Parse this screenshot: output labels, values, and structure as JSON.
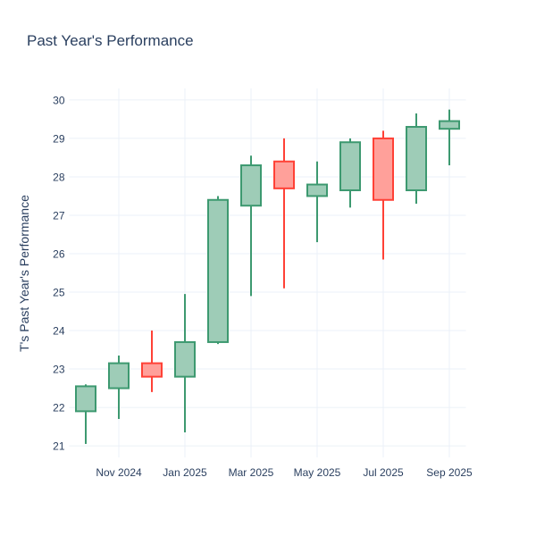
{
  "chart_data": {
    "type": "candlestick",
    "title": "Past Year's Performance",
    "xlabel": "",
    "ylabel": "T's Past Year's Performance",
    "ylim": [
      20.7,
      30.3
    ],
    "y_ticks": [
      21,
      22,
      23,
      24,
      25,
      26,
      27,
      28,
      29,
      30
    ],
    "x_ticks": [
      {
        "index": 1,
        "label": "Nov 2024"
      },
      {
        "index": 3,
        "label": "Jan 2025"
      },
      {
        "index": 5,
        "label": "Mar 2025"
      },
      {
        "index": 7,
        "label": "May 2025"
      },
      {
        "index": 9,
        "label": "Jul 2025"
      },
      {
        "index": 11,
        "label": "Sep 2025"
      }
    ],
    "grid": true,
    "legend": "none",
    "colors": {
      "increasing_line": "#3D9970",
      "increasing_fill": "#9ECCB7",
      "decreasing_line": "#FF4136",
      "decreasing_fill": "#FFA09A",
      "grid": "#EBF0F8",
      "text": "#2a3f5f",
      "background": "#FFFFFF"
    },
    "ohlc": [
      {
        "month": "Oct 2024",
        "open": 21.9,
        "high": 22.6,
        "low": 21.05,
        "close": 22.55
      },
      {
        "month": "Nov 2024",
        "open": 22.5,
        "high": 23.35,
        "low": 21.7,
        "close": 23.15
      },
      {
        "month": "Dec 2024",
        "open": 23.15,
        "high": 24.0,
        "low": 22.4,
        "close": 22.8
      },
      {
        "month": "Jan 2025",
        "open": 22.8,
        "high": 24.95,
        "low": 21.35,
        "close": 23.7
      },
      {
        "month": "Feb 2025",
        "open": 23.7,
        "high": 27.5,
        "low": 23.65,
        "close": 27.4
      },
      {
        "month": "Mar 2025",
        "open": 27.25,
        "high": 28.55,
        "low": 24.9,
        "close": 28.3
      },
      {
        "month": "Apr 2025",
        "open": 28.4,
        "high": 29.0,
        "low": 25.1,
        "close": 27.7
      },
      {
        "month": "May 2025",
        "open": 27.5,
        "high": 28.4,
        "low": 26.3,
        "close": 27.8
      },
      {
        "month": "Jun 2025",
        "open": 27.65,
        "high": 29.0,
        "low": 27.2,
        "close": 28.9
      },
      {
        "month": "Jul 2025",
        "open": 29.0,
        "high": 29.2,
        "low": 25.85,
        "close": 27.4
      },
      {
        "month": "Aug 2025",
        "open": 27.65,
        "high": 29.65,
        "low": 27.3,
        "close": 29.3
      },
      {
        "month": "Sep 2025",
        "open": 29.25,
        "high": 29.75,
        "low": 28.3,
        "close": 29.45
      }
    ]
  }
}
